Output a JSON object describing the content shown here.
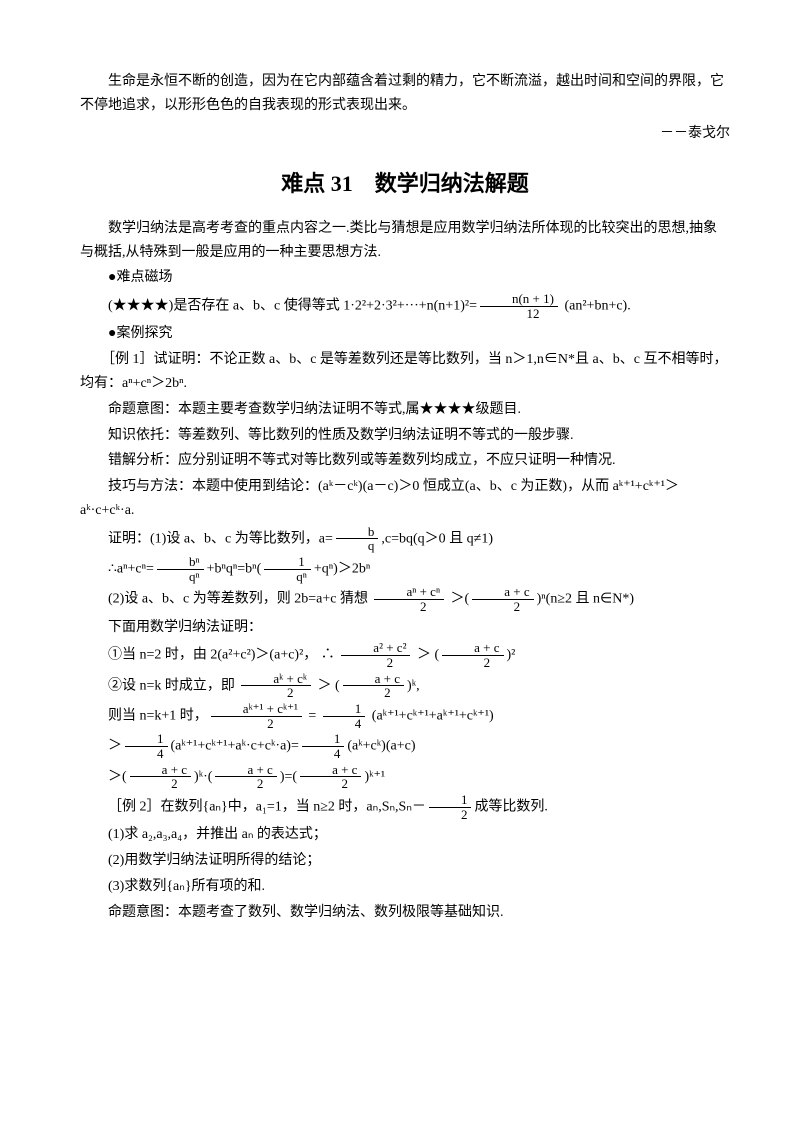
{
  "colors": {
    "text": "#000000",
    "bg": "#ffffff"
  },
  "typography": {
    "body_fontsize_pt": 10.5,
    "title_fontsize_pt": 16,
    "line_height": 1.7,
    "font_family": "SimSun / Songti SC"
  },
  "epigraph": {
    "text": "生命是永恒不断的创造，因为在它内部蕴含着过剩的精力，它不断流溢，越出时间和空间的界限，它不停地追求，以形形色色的自我表现的形式表现出来。",
    "author": "－－泰戈尔"
  },
  "title": "难点 31　数学归纳法解题",
  "intro": "数学归纳法是高考考查的重点内容之一.类比与猜想是应用数学归纳法所体现的比较突出的思想,抽象与概括,从特殊到一般是应用的一种主要思想方法.",
  "section_field": {
    "heading": "●难点磁场",
    "stars": "(★★★★)",
    "text_before_frac": "是否存在 a、b、c 使得等式 1·2²+2·3²+···+n(n+1)²=",
    "frac": {
      "num": "n(n + 1)",
      "den": "12"
    },
    "text_after_frac": " (an²+bn+c)."
  },
  "section_cases": "●案例探究",
  "ex1": {
    "label": "［例 1］",
    "statement": "试证明：不论正数 a、b、c 是等差数列还是等比数列，当 n＞1,n∈N*且 a、b、c 互不相等时，均有：aⁿ+cⁿ＞2bⁿ.",
    "intent": "命题意图：本题主要考查数学归纳法证明不等式,属★★★★级题目.",
    "basis": "知识依托：等差数列、等比数列的性质及数学归纳法证明不等式的一般步骤.",
    "error": "错解分析：应分别证明不等式对等比数列或等差数列均成立，不应只证明一种情况.",
    "skill": "技巧与方法：本题中使用到结论：(aᵏ－cᵏ)(a－c)＞0 恒成立(a、b、c 为正数)，从而 aᵏ⁺¹+cᵏ⁺¹＞aᵏ·c+cᵏ·a.",
    "proof_1_lead": "证明：(1)设 a、b、c 为等比数列，a=",
    "proof_1_frac1": {
      "num": "b",
      "den": "q"
    },
    "proof_1_mid": ",c=bq(q＞0 且 q≠1)",
    "proof_1_line2_a": "∴aⁿ+cⁿ=",
    "proof_1_line2_frac": {
      "num": "bⁿ",
      "den": "qⁿ"
    },
    "proof_1_line2_b": "+bⁿqⁿ=bⁿ(",
    "proof_1_line2_frac2": {
      "num": "1",
      "den": "qⁿ"
    },
    "proof_1_line2_c": "+qⁿ)＞2bⁿ",
    "proof_2_lead": "(2)设 a、b、c 为等差数列，则 2b=a+c 猜想 ",
    "proof_2_frac1": {
      "num": "aⁿ + cⁿ",
      "den": "2"
    },
    "proof_2_mid": " ＞(",
    "proof_2_frac2": {
      "num": "a + c",
      "den": "2"
    },
    "proof_2_tail": ")ⁿ(n≥2 且 n∈N*)",
    "proof_2_below": "下面用数学归纳法证明：",
    "step1_lead": "①当 n=2 时，由 2(a²+c²)＞(a+c)²，  ∴ ",
    "step1_frac1": {
      "num": "a² + c²",
      "den": "2"
    },
    "step1_mid": " ＞ (",
    "step1_frac2": {
      "num": "a + c",
      "den": "2"
    },
    "step1_tail": ")²",
    "step2_lead": "②设 n=k 时成立，即 ",
    "step2_frac1": {
      "num": "aᵏ + cᵏ",
      "den": "2"
    },
    "step2_mid": " ＞ (",
    "step2_frac2": {
      "num": "a + c",
      "den": "2"
    },
    "step2_tail": ")ᵏ,",
    "step3_lead": "则当 n=k+1 时，",
    "step3_fracA": {
      "num": "aᵏ⁺¹ + cᵏ⁺¹",
      "den": "2"
    },
    "step3_eq": " = ",
    "step3_fracB": {
      "num": "1",
      "den": "4"
    },
    "step3_tail": " (aᵏ⁺¹+cᵏ⁺¹+aᵏ⁺¹+cᵏ⁺¹)",
    "step4_lead": "＞",
    "step4_fracA": {
      "num": "1",
      "den": "4"
    },
    "step4_mid": "(aᵏ⁺¹+cᵏ⁺¹+aᵏ·c+cᵏ·a)=",
    "step4_fracB": {
      "num": "1",
      "den": "4"
    },
    "step4_tail": "(aᵏ+cᵏ)(a+c)",
    "step5_lead": "＞(",
    "step5_fracA": {
      "num": "a + c",
      "den": "2"
    },
    "step5_mid1": ")ᵏ·(",
    "step5_fracB": {
      "num": "a + c",
      "den": "2"
    },
    "step5_mid2": ")=(",
    "step5_fracC": {
      "num": "a + c",
      "den": "2"
    },
    "step5_tail": ")ᵏ⁺¹"
  },
  "ex2": {
    "label": "［例 2］",
    "lead": "在数列{aₙ}中，a₁=1，当 n≥2 时，aₙ,Sₙ,Sₙ－",
    "frac": {
      "num": "1",
      "den": "2"
    },
    "tail": "成等比数列.",
    "q1": "(1)求 a₂,a₃,a₄，并推出 aₙ 的表达式；",
    "q2": "(2)用数学归纳法证明所得的结论；",
    "q3": "(3)求数列{aₙ}所有项的和.",
    "intent": "命题意图：本题考查了数列、数学归纳法、数列极限等基础知识."
  }
}
